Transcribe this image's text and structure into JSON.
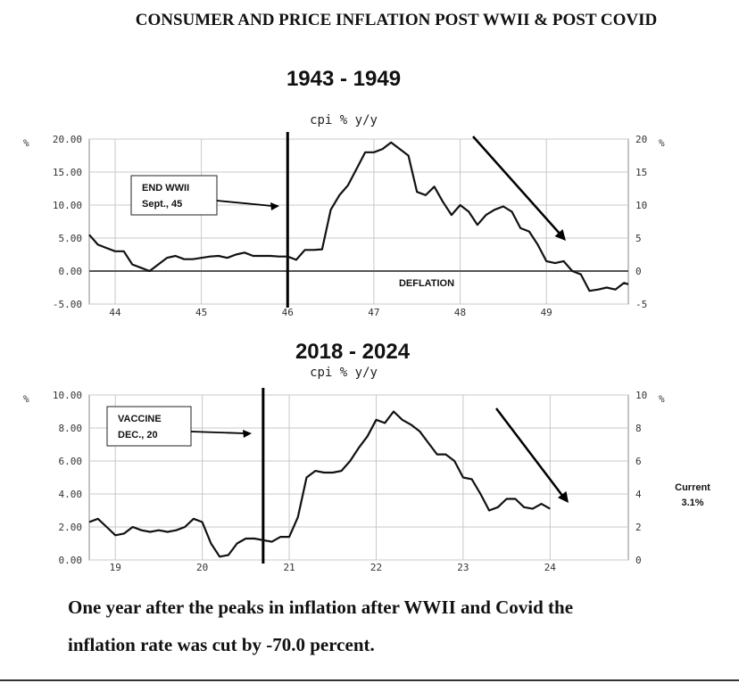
{
  "header": {
    "title": "CONSUMER AND PRICE INFLATION POST WWII & POST COVID"
  },
  "caption": {
    "line1": "One year after the peaks in inflation after WWII and Covid the",
    "line2": "inflation rate was cut by -70.0 percent."
  },
  "colors": {
    "line": "#111111",
    "grid": "#c8c8c8",
    "axis": "#888888"
  },
  "chart_data": [
    {
      "type": "line",
      "title": "1943 - 1949",
      "subtitle": "cpi % y/y",
      "left_axis_unit": "%",
      "right_axis_unit": "%",
      "ylim": [
        -5,
        20
      ],
      "xlim": [
        43.7,
        49.95
      ],
      "left_ticks": [
        "20.00",
        "15.00",
        "10.00",
        "5.00",
        "0.00",
        "-5.00"
      ],
      "right_ticks": [
        "20",
        "15",
        "10",
        "5",
        "0",
        "-5"
      ],
      "tick_values": [
        20,
        15,
        10,
        5,
        0,
        -5
      ],
      "x_ticks": [
        "44",
        "45",
        "46",
        "47",
        "48",
        "49"
      ],
      "x_tick_values": [
        44,
        45,
        46,
        47,
        48,
        49
      ],
      "grid": true,
      "zero_line": true,
      "vertical_marker_x": 46.0,
      "annotation_box": {
        "line1": "END WWII",
        "line2": "Sept., 45"
      },
      "region_label": "DEFLATION",
      "series": [
        {
          "x": [
            43.7,
            43.8,
            43.9,
            44.0,
            44.1,
            44.2,
            44.3,
            44.4,
            44.5,
            44.6,
            44.7,
            44.8,
            44.9,
            45.0,
            45.1,
            45.2,
            45.3,
            45.4,
            45.5,
            45.6,
            45.7,
            45.8,
            45.9,
            46.0,
            46.1,
            46.2,
            46.3,
            46.4,
            46.5,
            46.6,
            46.7,
            46.8,
            46.9,
            47.0,
            47.1,
            47.2,
            47.3,
            47.4,
            47.5,
            47.6,
            47.7,
            47.8,
            47.9,
            48.0,
            48.1,
            48.2,
            48.3,
            48.4,
            48.5,
            48.6,
            48.7,
            48.8,
            48.9,
            49.0,
            49.1,
            49.2,
            49.3,
            49.4,
            49.5,
            49.6,
            49.7,
            49.8,
            49.9,
            49.95
          ],
          "values": [
            5.5,
            4.0,
            3.5,
            3.0,
            3.0,
            1.0,
            0.5,
            0.0,
            1.0,
            2.0,
            2.3,
            1.8,
            1.8,
            2.0,
            2.2,
            2.3,
            2.0,
            2.5,
            2.8,
            2.3,
            2.3,
            2.3,
            2.2,
            2.2,
            1.7,
            3.2,
            3.2,
            3.3,
            9.3,
            11.5,
            13.0,
            15.5,
            18.0,
            18.0,
            18.5,
            19.5,
            18.5,
            17.5,
            12.0,
            11.5,
            12.8,
            10.5,
            8.5,
            10.0,
            9.0,
            7.0,
            8.5,
            9.3,
            9.8,
            9.0,
            6.5,
            6.0,
            4.0,
            1.5,
            1.2,
            1.5,
            0.0,
            -0.5,
            -3.0,
            -2.8,
            -2.5,
            -2.8,
            -1.8,
            -2.0
          ]
        }
      ]
    },
    {
      "type": "line",
      "title": "2018 - 2024",
      "subtitle": "cpi % y/y",
      "left_axis_unit": "%",
      "right_axis_unit": "%",
      "ylim": [
        0,
        10
      ],
      "xlim": [
        18.7,
        24.9
      ],
      "left_ticks": [
        "10.00",
        "8.00",
        "6.00",
        "4.00",
        "2.00",
        "0.00"
      ],
      "right_ticks": [
        "10",
        "8",
        "6",
        "4",
        "2",
        "0"
      ],
      "tick_values": [
        10,
        8,
        6,
        4,
        2,
        0
      ],
      "x_ticks": [
        "19",
        "20",
        "21",
        "22",
        "23",
        "24"
      ],
      "x_tick_values": [
        19,
        20,
        21,
        22,
        23,
        24
      ],
      "grid": true,
      "zero_line": false,
      "vertical_marker_x": 20.7,
      "annotation_box": {
        "line1": "VACCINE",
        "line2": "DEC., 20"
      },
      "current_label": {
        "line1": "Current",
        "line2": "3.1%"
      },
      "series": [
        {
          "x": [
            18.7,
            18.8,
            18.9,
            19.0,
            19.1,
            19.2,
            19.3,
            19.4,
            19.5,
            19.6,
            19.7,
            19.8,
            19.9,
            20.0,
            20.1,
            20.2,
            20.3,
            20.4,
            20.5,
            20.6,
            20.7,
            20.8,
            20.9,
            21.0,
            21.1,
            21.2,
            21.3,
            21.4,
            21.5,
            21.6,
            21.7,
            21.8,
            21.9,
            22.0,
            22.1,
            22.2,
            22.3,
            22.4,
            22.5,
            22.6,
            22.7,
            22.8,
            22.9,
            23.0,
            23.1,
            23.2,
            23.3,
            23.4,
            23.5,
            23.6,
            23.7,
            23.8,
            23.9,
            24.0
          ],
          "values": [
            2.3,
            2.5,
            2.0,
            1.5,
            1.6,
            2.0,
            1.8,
            1.7,
            1.8,
            1.7,
            1.8,
            2.0,
            2.5,
            2.3,
            1.0,
            0.2,
            0.3,
            1.0,
            1.3,
            1.3,
            1.2,
            1.1,
            1.4,
            1.4,
            2.6,
            5.0,
            5.4,
            5.3,
            5.3,
            5.4,
            6.0,
            6.8,
            7.5,
            8.5,
            8.3,
            9.0,
            8.5,
            8.2,
            7.8,
            7.1,
            6.4,
            6.4,
            6.0,
            5.0,
            4.9,
            4.0,
            3.0,
            3.2,
            3.7,
            3.7,
            3.2,
            3.1,
            3.4,
            3.1
          ]
        }
      ]
    }
  ]
}
